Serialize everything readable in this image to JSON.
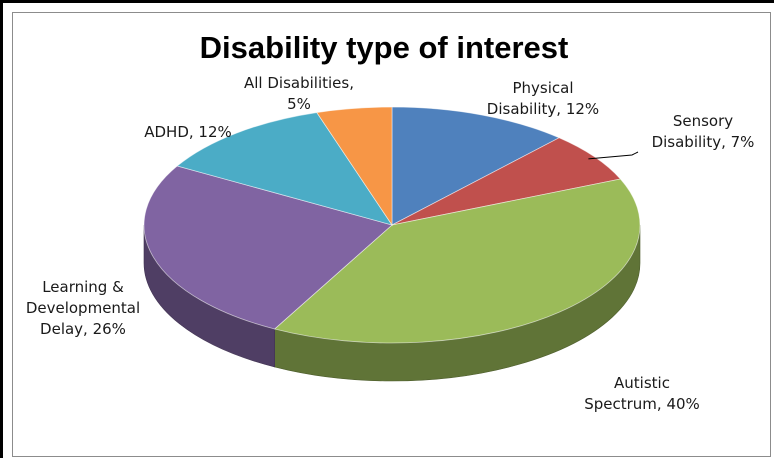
{
  "chart_data": {
    "type": "pie",
    "title": "Disability type of interest",
    "slices": [
      {
        "label_lines": [
          "Physical",
          "Disability, 12%"
        ],
        "value": 12,
        "color": "#4f81bd"
      },
      {
        "label_lines": [
          "Sensory",
          "Disability, 7%"
        ],
        "value": 7,
        "color": "#c0504d"
      },
      {
        "label_lines": [
          "Autistic",
          "Spectrum, 40%"
        ],
        "value": 40,
        "color": "#9bbb59"
      },
      {
        "label_lines": [
          "Learning &",
          "Developmental",
          "Delay, 26%"
        ],
        "value": 26,
        "color": "#8064a2"
      },
      {
        "label_lines": [
          "ADHD, 12%"
        ],
        "value": 12,
        "color": "#4bacc6"
      },
      {
        "label_lines": [
          "All Disabilities,",
          "5%"
        ],
        "value": 5,
        "color": "#f79646"
      }
    ],
    "style": "3d",
    "legend": "none"
  }
}
